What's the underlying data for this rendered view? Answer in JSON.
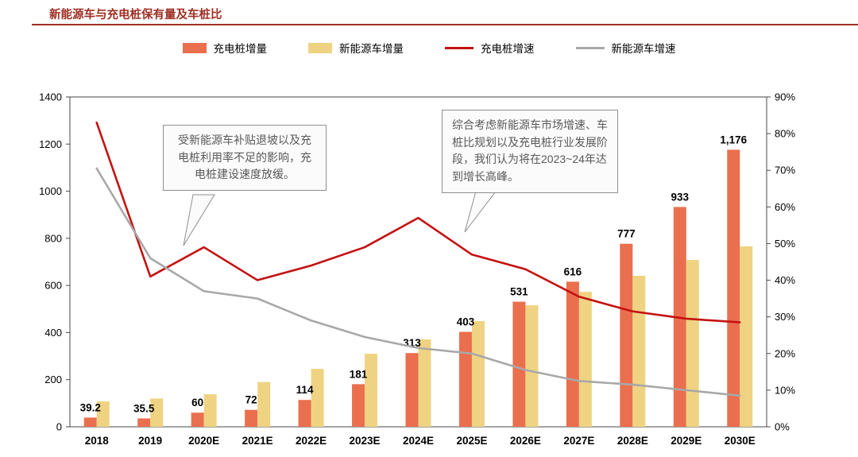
{
  "header": {
    "title": "新能源车与充电桩保有量及车桩比"
  },
  "colors": {
    "title": "#9E2F23",
    "title_rule": "#9E2F23",
    "bar_charging_pile": "#EA6F4E",
    "bar_nev": "#EFD382",
    "line_charging_pile_growth": "#C41212",
    "line_nev_growth": "#A8A8A8"
  },
  "legend": [
    {
      "label": "充电桩增量",
      "type": "bar",
      "color": "#EA6F4E"
    },
    {
      "label": "新能源车增量",
      "type": "bar",
      "color": "#EFD382"
    },
    {
      "label": "充电桩增速",
      "type": "line",
      "color": "#C41212"
    },
    {
      "label": "新能源车增速",
      "type": "line",
      "color": "#A8A8A8"
    }
  ],
  "annotations": [
    {
      "text": "受新能源车补贴退坡以及充电桩利用率不足的影响，充电桩建设速度放缓。"
    },
    {
      "text": "综合考虑新能源车市场增速、车桩比规划以及充电桩行业发展阶段，我们认为将在2023~24年达到增长高峰。"
    }
  ],
  "chart_data": {
    "type": "bar",
    "subtype": "grouped bars with two overlay lines (dual axis)",
    "title": "新能源车与充电桩保有量及车桩比",
    "categories": [
      "2018",
      "2019",
      "2020E",
      "2021E",
      "2022E",
      "2023E",
      "2024E",
      "2025E",
      "2026E",
      "2027E",
      "2028E",
      "2029E",
      "2030E"
    ],
    "bar_series": [
      {
        "name": "充电桩增量",
        "axis": "left",
        "color": "#EA6F4E",
        "values": [
          39.2,
          35.5,
          60,
          72,
          114,
          181,
          313,
          403,
          531,
          616,
          777,
          933,
          1176
        ],
        "labels": [
          "39.2",
          "35.5",
          "60",
          "72",
          "114",
          "181",
          "313",
          "403",
          "531",
          "616",
          "777",
          "933",
          "1,176"
        ]
      },
      {
        "name": "新能源车增量",
        "axis": "left",
        "color": "#EFD382",
        "values": [
          108,
          120,
          138,
          190,
          246,
          310,
          371,
          449,
          516,
          573,
          641,
          708,
          766
        ]
      }
    ],
    "line_series": [
      {
        "name": "充电桩增速",
        "axis": "right",
        "unit": "%",
        "color": "#C41212",
        "values": [
          83,
          41,
          49,
          40,
          44,
          49,
          57,
          47,
          43,
          35.5,
          31.5,
          29.5,
          28.5
        ]
      },
      {
        "name": "新能源车增速",
        "axis": "right",
        "unit": "%",
        "color": "#A8A8A8",
        "values": [
          70.5,
          46,
          37,
          35,
          29,
          24.5,
          21.5,
          20,
          15.5,
          12.5,
          11.5,
          10,
          8.5
        ]
      }
    ],
    "left_axis": {
      "min": 0,
      "max": 1400,
      "step": 200,
      "ticks": [
        "0",
        "200",
        "400",
        "600",
        "800",
        "1000",
        "1200",
        "1400"
      ]
    },
    "right_axis": {
      "min": 0,
      "max": 90,
      "step": 10,
      "ticks": [
        "0%",
        "10%",
        "20%",
        "30%",
        "40%",
        "50%",
        "60%",
        "70%",
        "80%",
        "90%"
      ]
    },
    "grid": false,
    "legend_position": "top"
  }
}
